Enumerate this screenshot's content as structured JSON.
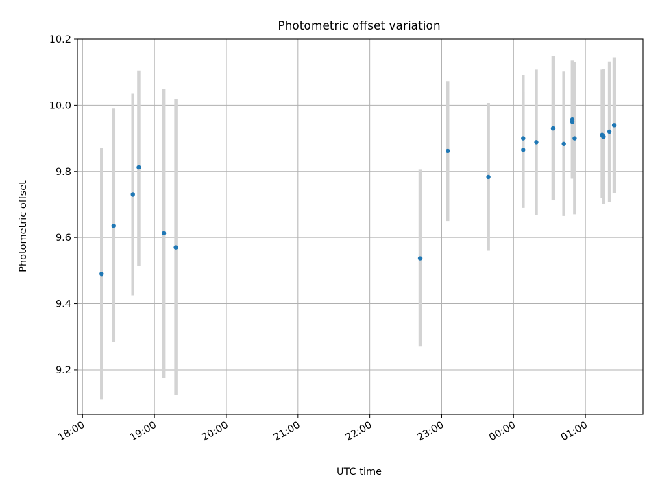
{
  "chart_data": {
    "type": "scatter",
    "title": "Photometric offset variation",
    "xlabel": "UTC time",
    "ylabel": "Photometric offset",
    "x_tick_labels": [
      "18:00",
      "19:00",
      "20:00",
      "21:00",
      "22:00",
      "23:00",
      "00:00",
      "01:00"
    ],
    "x_tick_hours": [
      18,
      19,
      20,
      21,
      22,
      23,
      24,
      25
    ],
    "xlim_hours": [
      17.93,
      25.8
    ],
    "ylim": [
      9.065,
      10.2
    ],
    "y_ticks": [
      9.2,
      9.4,
      9.6,
      9.8,
      10.0,
      10.2
    ],
    "y_tick_labels": [
      "9.2",
      "9.4",
      "9.6",
      "9.8",
      "10.0",
      "10.2"
    ],
    "grid": true,
    "series": [
      {
        "marker_color": "#1f77b4",
        "errorbar_color": "#d3d3d3",
        "points": [
          {
            "time": "18:16",
            "y": 9.49,
            "err_low": 9.11,
            "err_high": 9.87
          },
          {
            "time": "18:26",
            "y": 9.635,
            "err_low": 9.285,
            "err_high": 9.99
          },
          {
            "time": "18:42",
            "y": 9.73,
            "err_low": 9.425,
            "err_high": 10.035
          },
          {
            "time": "18:47",
            "y": 9.812,
            "err_low": 9.515,
            "err_high": 10.105
          },
          {
            "time": "19:08",
            "y": 9.613,
            "err_low": 9.175,
            "err_high": 10.05
          },
          {
            "time": "19:18",
            "y": 9.57,
            "err_low": 9.125,
            "err_high": 10.018
          },
          {
            "time": "22:42",
            "y": 9.537,
            "err_low": 9.27,
            "err_high": 9.805
          },
          {
            "time": "23:05",
            "y": 9.862,
            "err_low": 9.65,
            "err_high": 10.073
          },
          {
            "time": "23:39",
            "y": 9.783,
            "err_low": 9.56,
            "err_high": 10.007
          },
          {
            "time": "00:08",
            "y": 9.9,
            "err_low": 9.69,
            "err_high": 10.09
          },
          {
            "time": "00:08",
            "y": 9.865,
            "err_low": 9.69,
            "err_high": 10.04
          },
          {
            "time": "00:19",
            "y": 9.888,
            "err_low": 9.668,
            "err_high": 10.108
          },
          {
            "time": "00:33",
            "y": 9.93,
            "err_low": 9.713,
            "err_high": 10.148
          },
          {
            "time": "00:42",
            "y": 9.883,
            "err_low": 9.665,
            "err_high": 10.102
          },
          {
            "time": "00:49",
            "y": 9.95,
            "err_low": 9.778,
            "err_high": 10.135
          },
          {
            "time": "00:49",
            "y": 9.957,
            "err_low": 9.778,
            "err_high": 10.135
          },
          {
            "time": "00:51",
            "y": 9.9,
            "err_low": 9.67,
            "err_high": 10.13
          },
          {
            "time": "01:14",
            "y": 9.91,
            "err_low": 9.72,
            "err_high": 10.108
          },
          {
            "time": "01:15",
            "y": 9.905,
            "err_low": 9.7,
            "err_high": 10.11
          },
          {
            "time": "01:20",
            "y": 9.92,
            "err_low": 9.708,
            "err_high": 10.132
          },
          {
            "time": "01:24",
            "y": 9.94,
            "err_low": 9.735,
            "err_high": 10.145
          }
        ]
      }
    ]
  }
}
